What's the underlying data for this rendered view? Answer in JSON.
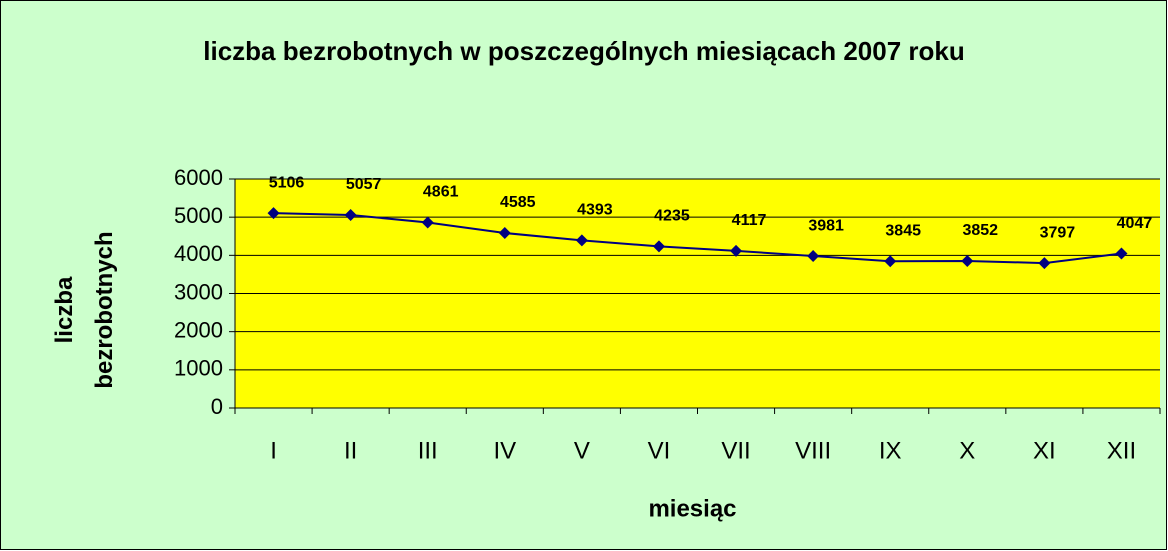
{
  "chart_data": {
    "type": "line",
    "title": "liczba bezrobotnych w poszczególnych miesiącach 2007 roku",
    "x_label": "miesiąc",
    "y_label": "liczba bezrobotnych",
    "categories": [
      "I",
      "II",
      "III",
      "IV",
      "V",
      "VI",
      "VII",
      "VIII",
      "IX",
      "X",
      "XI",
      "XII"
    ],
    "series": [
      {
        "name": "liczba bezrobotnych",
        "color": "#000080",
        "values": [
          5106,
          5057,
          4861,
          4585,
          4393,
          4235,
          4117,
          3981,
          3845,
          3852,
          3797,
          4047
        ]
      }
    ],
    "ylim": [
      0,
      6000
    ],
    "yticks": [
      0,
      1000,
      2000,
      3000,
      4000,
      5000,
      6000
    ],
    "grid": true,
    "plot_color": "#ffff00",
    "background": "#ccffcc",
    "data_labels": true
  }
}
